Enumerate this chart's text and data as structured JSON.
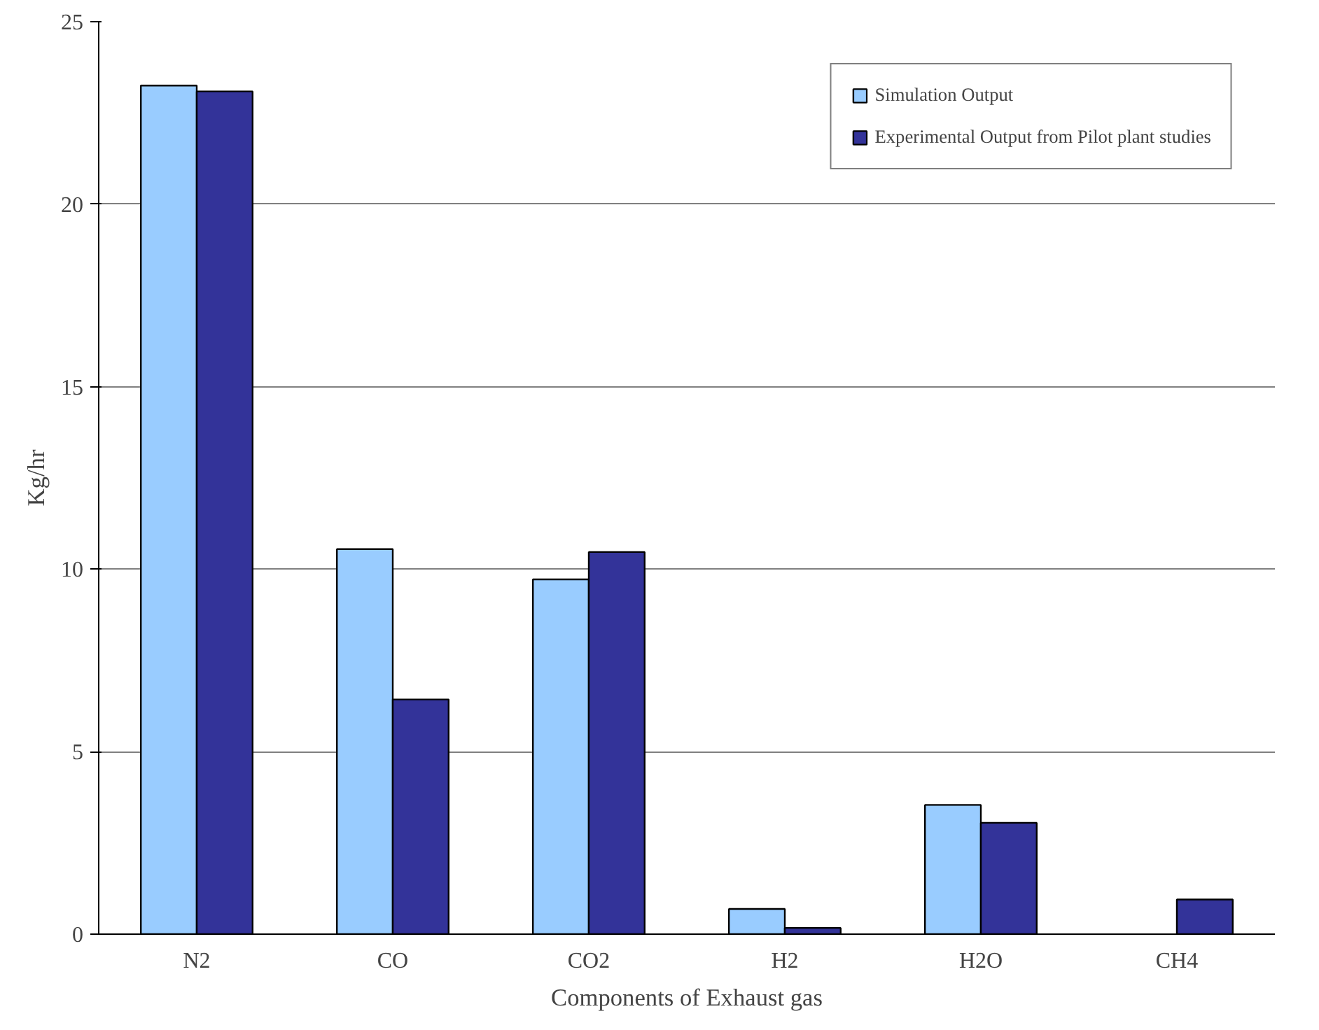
{
  "chart_data": {
    "type": "bar",
    "xlabel": "Components of Exhaust gas",
    "ylabel": "Kg/hr",
    "categories": [
      "N2",
      "CO",
      "CO2",
      "H2",
      "H2O",
      "CH4"
    ],
    "series": [
      {
        "name": "Simulation Output",
        "color": "#99ccff",
        "values": [
          23.25,
          10.55,
          9.72,
          0.69,
          3.54,
          null
        ]
      },
      {
        "name": "Experimental Output from Pilot plant studies",
        "color": "#333399",
        "values": [
          23.09,
          6.43,
          10.47,
          0.17,
          3.05,
          0.95
        ]
      }
    ],
    "ylim": [
      0,
      25
    ],
    "yticks": [
      0,
      5,
      10,
      15,
      20,
      25
    ],
    "grid": "y",
    "legend": "top right"
  }
}
